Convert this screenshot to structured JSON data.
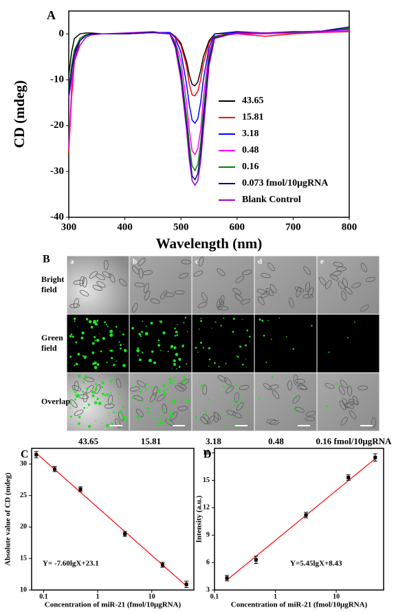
{
  "chart_data": [
    {
      "type": "line",
      "panel_label": "A",
      "xlabel": "Wavelength (nm)",
      "ylabel": "CD (mdeg)",
      "xlim": [
        300,
        800
      ],
      "ylim": [
        -40,
        5
      ],
      "xticks": [
        300,
        400,
        500,
        600,
        700,
        800
      ],
      "yticks": [
        0,
        -10,
        -20,
        -30,
        -40
      ],
      "x": [
        300,
        305,
        310,
        320,
        330,
        340,
        360,
        400,
        450,
        480,
        490,
        500,
        510,
        515,
        520,
        525,
        530,
        535,
        540,
        550,
        560,
        600,
        650,
        700,
        750,
        800
      ],
      "series": [
        {
          "name": "43.65",
          "color": "#000000",
          "values": [
            -9,
            -4,
            -1,
            0,
            0.2,
            0.2,
            0,
            0,
            0.3,
            0.2,
            -0.5,
            -2,
            -6,
            -9,
            -11,
            -11.3,
            -10.5,
            -8,
            -5,
            -1.5,
            0,
            0.5,
            0.2,
            0.5,
            0.5,
            1.2
          ]
        },
        {
          "name": "15.81",
          "color": "#ff0000",
          "values": [
            -26,
            -14,
            -6,
            -1.5,
            -0.3,
            0,
            0,
            0,
            0.3,
            0.3,
            -0.5,
            -2.5,
            -7,
            -11,
            -13.3,
            -13.5,
            -12.5,
            -10,
            -6.5,
            -2,
            0,
            0,
            -0.5,
            0,
            0.3,
            0.5
          ]
        },
        {
          "name": "3.18",
          "color": "#0000ff",
          "values": [
            -13,
            -8,
            -4,
            -1,
            -0.2,
            0,
            0,
            0,
            0.3,
            0.3,
            -0.8,
            -4,
            -11,
            -15.5,
            -18.8,
            -19.5,
            -18.5,
            -15,
            -10,
            -3,
            0,
            0.4,
            0.2,
            0.3,
            0.5,
            1
          ]
        },
        {
          "name": "0.48",
          "color": "#ff00ff",
          "values": [
            -25,
            -12,
            -5,
            -1.5,
            -0.3,
            0,
            0,
            0,
            0.3,
            0,
            -1.5,
            -6,
            -15,
            -21,
            -25.5,
            -26.3,
            -25,
            -21,
            -14,
            -4,
            -0.5,
            0,
            0,
            0.2,
            0.3,
            0.7
          ]
        },
        {
          "name": "0.16",
          "color": "#008000",
          "values": [
            -12,
            -7,
            -3.5,
            -1,
            -0.2,
            0,
            0,
            0,
            0.3,
            0,
            -2,
            -8,
            -18,
            -24,
            -28.8,
            -29.8,
            -28.5,
            -24,
            -17,
            -5,
            -0.5,
            0.2,
            0.2,
            0.3,
            0.5,
            1.2
          ]
        },
        {
          "name": "0.073 fmol/10μgRNA",
          "color": "#000080",
          "values": [
            -13,
            -8,
            -4.5,
            -1.5,
            -0.4,
            0,
            0,
            0,
            0.3,
            0,
            -2.5,
            -9,
            -20,
            -26,
            -31,
            -31.8,
            -30.5,
            -26,
            -19,
            -6,
            -0.8,
            0.3,
            0.2,
            0.4,
            0.6,
            1.5
          ]
        },
        {
          "name": "Blank Control",
          "color": "#9900cc",
          "values": [
            -14,
            -10,
            -6,
            -2.5,
            -0.8,
            -0.2,
            0,
            0.2,
            0.5,
            0,
            -3,
            -10,
            -21,
            -27.5,
            -32,
            -33,
            -32,
            -28,
            -21,
            -7,
            -1,
            0.3,
            0.2,
            0.4,
            0.6,
            1
          ]
        }
      ]
    },
    {
      "type": "scatter",
      "panel_label": "C",
      "xlabel": "Concentration of miR-21 (fmol/10μgRNA)",
      "ylabel": "Absolute value of CD (mdeg)",
      "log_x": true,
      "xlim": [
        0.06,
        60
      ],
      "ylim": [
        10,
        32.5
      ],
      "xticks": [
        0.1,
        1,
        10
      ],
      "yticks": [
        10,
        15,
        20,
        25,
        30
      ],
      "x": [
        0.073,
        0.16,
        0.48,
        3.18,
        15.81,
        43.65
      ],
      "values": [
        31.5,
        29.2,
        26,
        18.9,
        14,
        10.9
      ],
      "errors": [
        0.5,
        0.4,
        0.4,
        0.4,
        0.4,
        0.5
      ],
      "color": "#000000",
      "fit": {
        "slope": -7.6,
        "intercept": 23.1,
        "color": "#ff0000"
      },
      "annotation": "Y= -7.60lgX+23.1"
    },
    {
      "type": "scatter",
      "panel_label": "D",
      "xlabel": "Concentration of miR-21 (fmol/10μgRNA)",
      "ylabel": "Intensity (a.u.)",
      "log_x": true,
      "xlim": [
        0.1,
        60
      ],
      "ylim": [
        3,
        18.5
      ],
      "xticks": [
        0.1,
        1,
        10
      ],
      "yticks": [
        3,
        6,
        9,
        12,
        15,
        18
      ],
      "x": [
        0.16,
        0.48,
        3.18,
        15.81,
        43.65
      ],
      "values": [
        4.3,
        6.3,
        11.2,
        15.3,
        17.5
      ],
      "errors": [
        0.3,
        0.4,
        0.3,
        0.3,
        0.4
      ],
      "color": "#000000",
      "fit": {
        "slope": 5.45,
        "intercept": 8.43,
        "color": "#ff0000"
      },
      "annotation": "Y=5.45lgX+8.43"
    }
  ],
  "panel_b": {
    "panel_label": "B",
    "columns": [
      "a",
      "b",
      "c",
      "d",
      "e"
    ],
    "rows": [
      [
        "Bright",
        "field"
      ],
      [
        "Green",
        "field"
      ],
      [
        "Overlap"
      ]
    ],
    "concentrations": [
      "43.65",
      "15.81",
      "3.18",
      "0.48",
      "0.16 fmol/10μgRNA"
    ]
  }
}
